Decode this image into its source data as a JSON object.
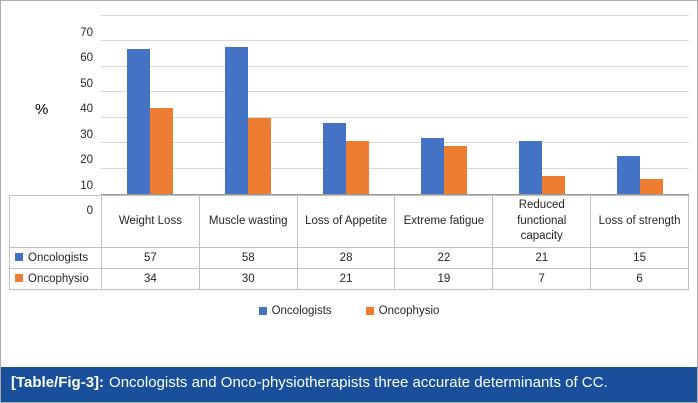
{
  "figure": {
    "caption_label": "[Table/Fig-3]:",
    "caption_text": "Oncologists and Onco-physiotherapists three accurate determinants of CC."
  },
  "chart_data": {
    "type": "bar",
    "title": "",
    "xlabel": "",
    "ylabel": "%",
    "ylim": [
      0,
      70
    ],
    "yticks": [
      0,
      10,
      20,
      30,
      40,
      50,
      60,
      70
    ],
    "grid": true,
    "legend_position": "bottom",
    "data_table_shown": true,
    "categories": [
      "Weight Loss",
      "Muscle wasting",
      "Loss of Appetite",
      "Extreme fatigue",
      "Reduced functional capacity",
      "Loss of strength"
    ],
    "series": [
      {
        "name": "Oncologists",
        "color": "#4472C4",
        "values": [
          57,
          58,
          28,
          22,
          21,
          15
        ]
      },
      {
        "name": "Oncophysio",
        "color": "#ED7D31",
        "values": [
          34,
          30,
          21,
          19,
          7,
          6
        ]
      }
    ]
  }
}
